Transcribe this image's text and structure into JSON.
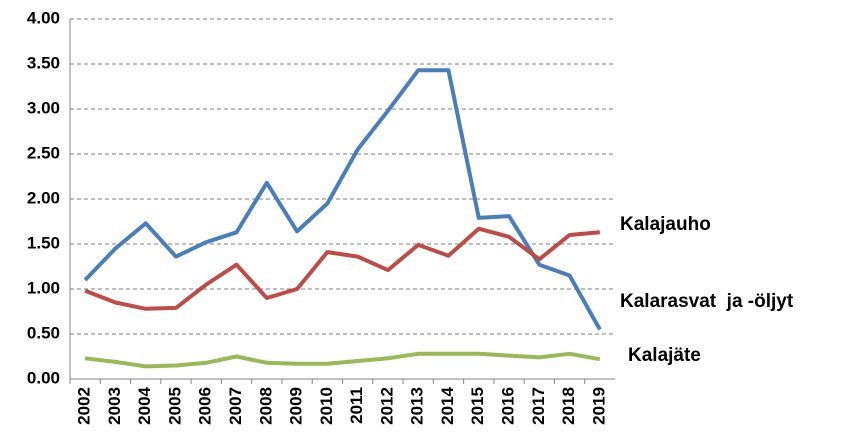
{
  "chart_data": {
    "type": "line",
    "categories": [
      "2002",
      "2003",
      "2004",
      "2005",
      "2006",
      "2007",
      "2008",
      "2009",
      "2010",
      "2011",
      "2012",
      "2013",
      "2014",
      "2015",
      "2016",
      "2017",
      "2018",
      "2019"
    ],
    "series": [
      {
        "name": "Kalarasvat  ja -öljyt",
        "color": "#4a7ebb",
        "values": [
          1.1,
          1.45,
          1.73,
          1.36,
          1.52,
          1.63,
          2.18,
          1.64,
          1.95,
          2.55,
          2.98,
          3.43,
          3.43,
          1.79,
          1.81,
          1.27,
          1.15,
          0.55
        ]
      },
      {
        "name": "Kalajauho",
        "color": "#be4b48",
        "values": [
          0.98,
          0.85,
          0.78,
          0.79,
          1.05,
          1.27,
          0.9,
          1.0,
          1.41,
          1.36,
          1.21,
          1.49,
          1.37,
          1.67,
          1.58,
          1.33,
          1.6,
          1.63
        ]
      },
      {
        "name": "Kalajäte",
        "color": "#98b954",
        "values": [
          0.23,
          0.19,
          0.14,
          0.15,
          0.18,
          0.25,
          0.18,
          0.17,
          0.17,
          0.2,
          0.23,
          0.28,
          0.28,
          0.28,
          0.26,
          0.24,
          0.28,
          0.22
        ]
      }
    ],
    "ylim": [
      0,
      4
    ],
    "yticks": [
      {
        "value": 0,
        "label": "0.00"
      },
      {
        "value": 0.5,
        "label": "0.50"
      },
      {
        "value": 1,
        "label": "1.00"
      },
      {
        "value": 1.5,
        "label": "1.50"
      },
      {
        "value": 2,
        "label": "2.00"
      },
      {
        "value": 2.5,
        "label": "2.50"
      },
      {
        "value": 3,
        "label": "3.00"
      },
      {
        "value": 3.5,
        "label": "3.50"
      },
      {
        "value": 4,
        "label": "4.00"
      }
    ],
    "grid": true
  }
}
